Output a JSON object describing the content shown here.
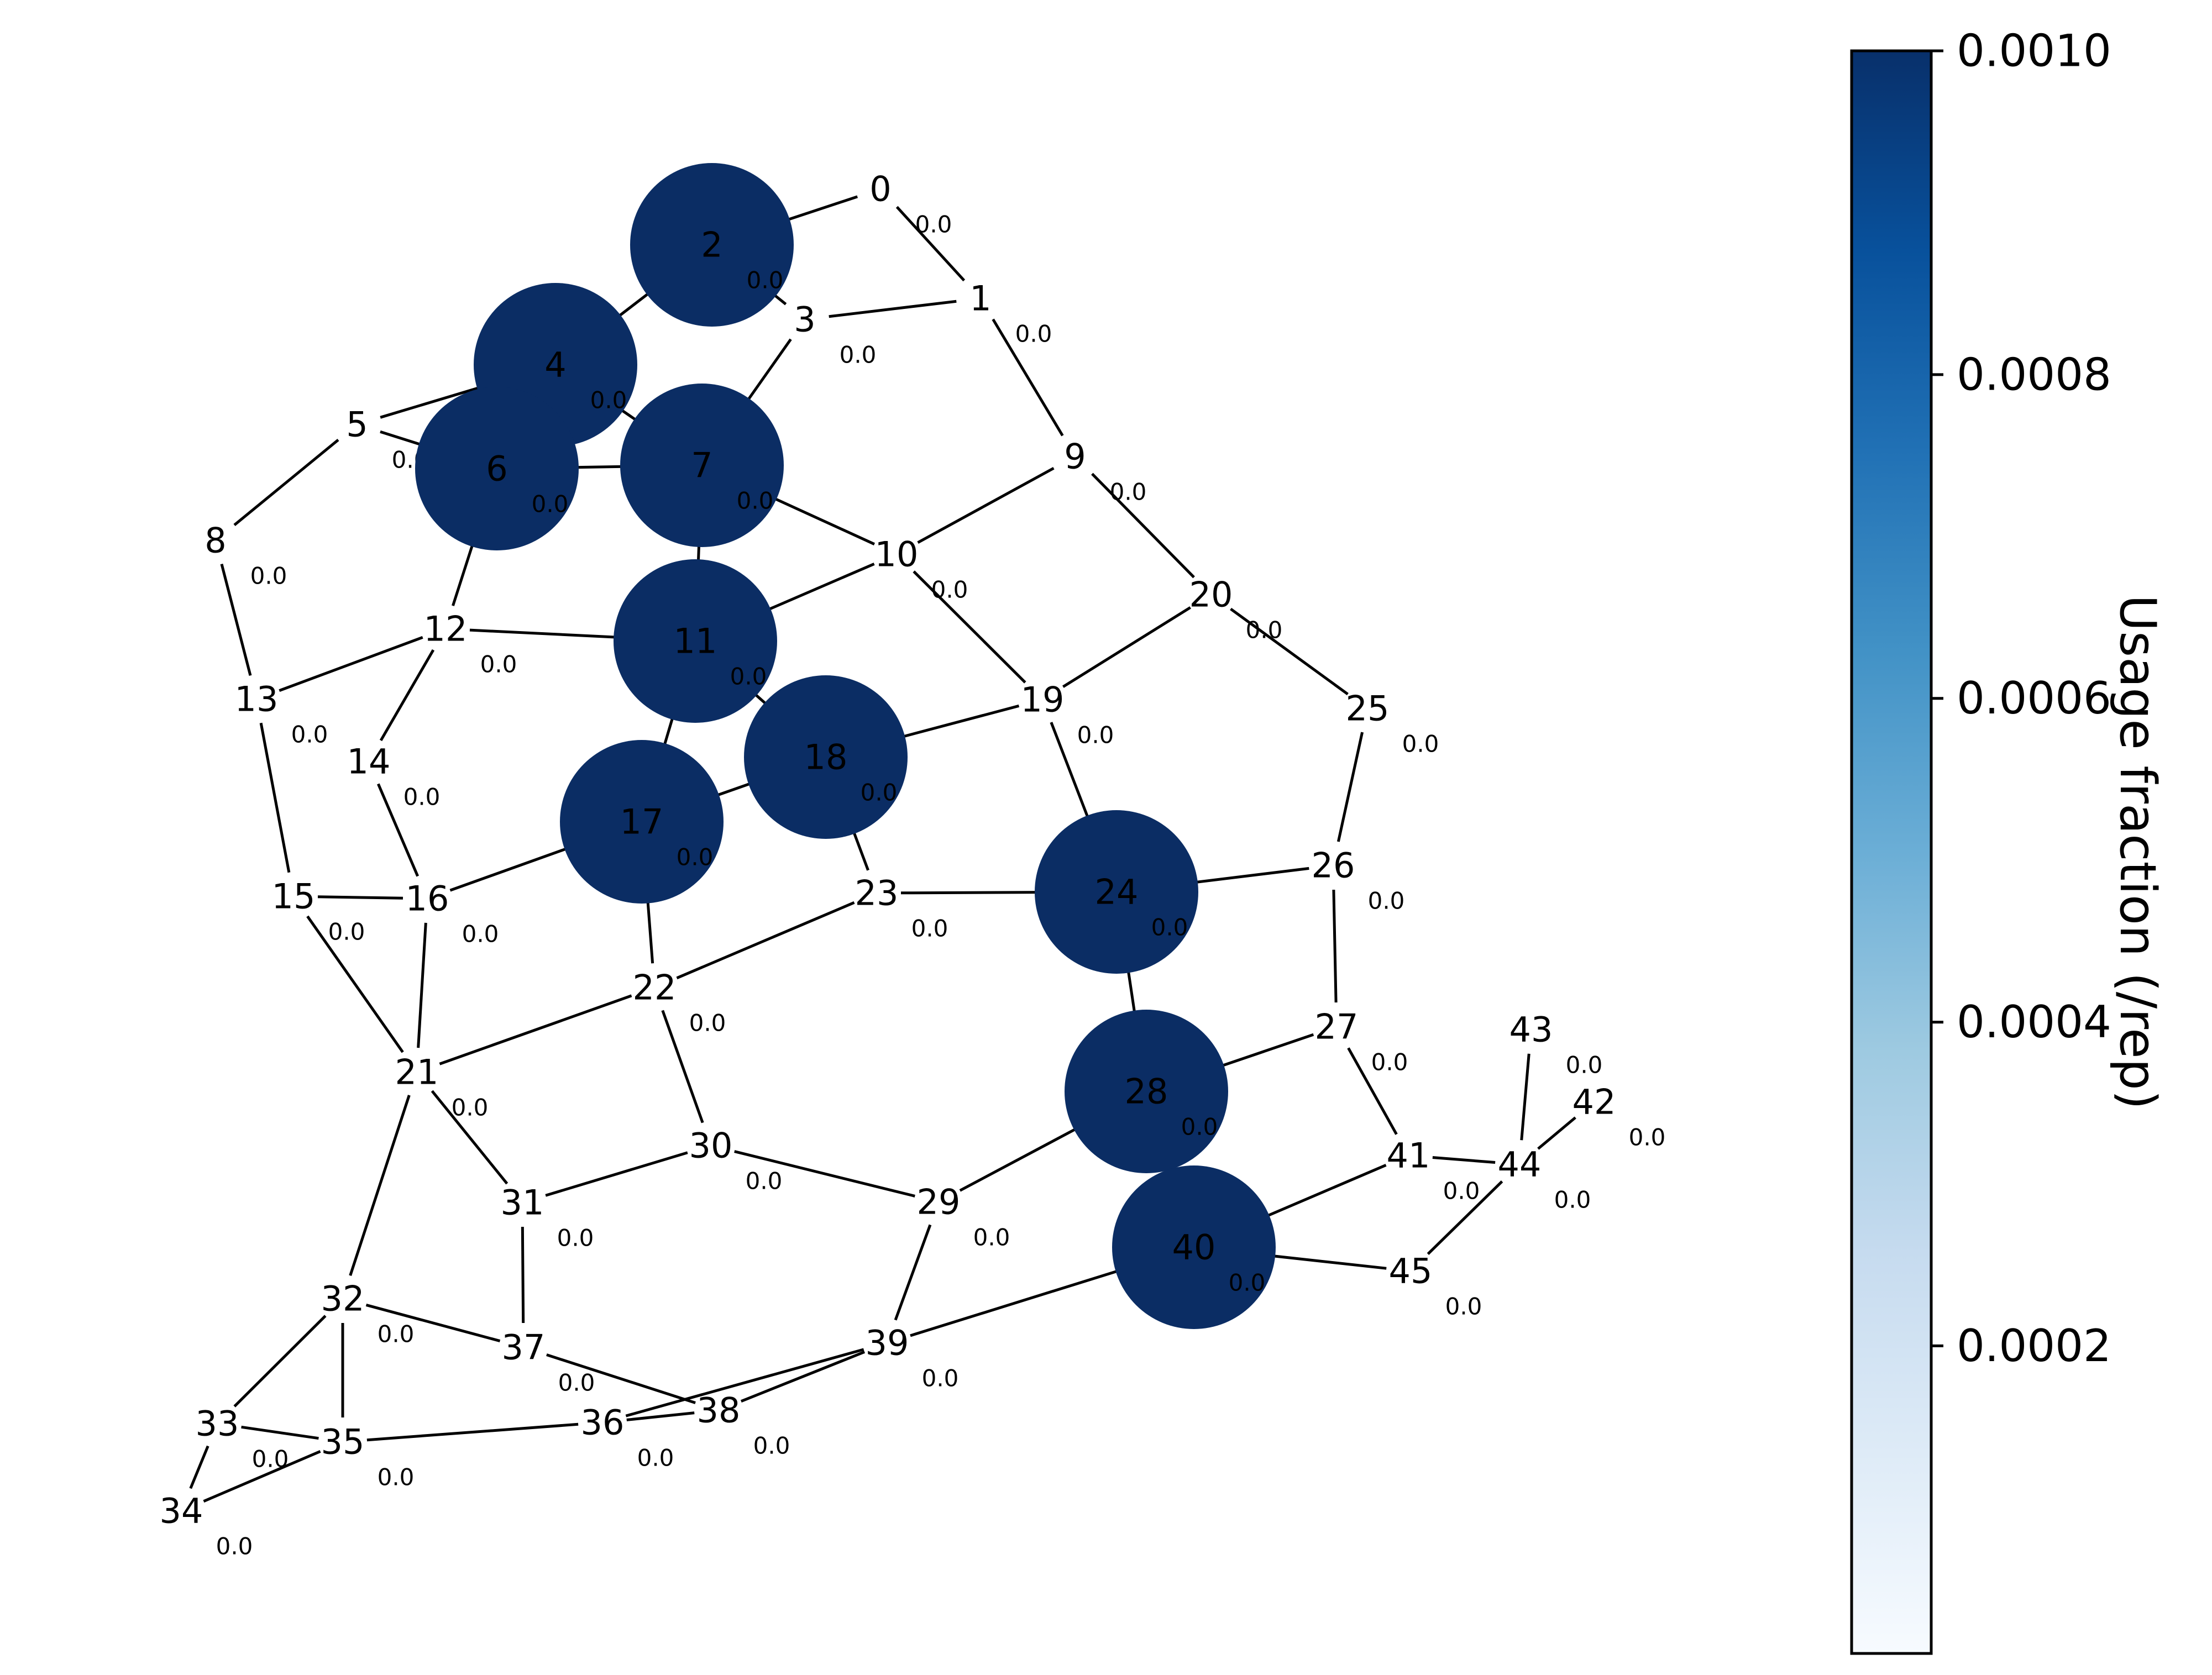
{
  "diagram": {
    "type": "network-graph",
    "colormap": {
      "name": "Blues",
      "light": "#f7fbff",
      "dark": "#08306b",
      "stops": [
        "#f7fbff",
        "#deebf7",
        "#c6dbef",
        "#9ecae1",
        "#6baed6",
        "#4292c6",
        "#2171b5",
        "#08519c",
        "#08306b"
      ]
    },
    "colors": {
      "edge": "#000000",
      "highlighted_node": "#0b2d64",
      "background": "#ffffff"
    },
    "highlighted_nodes": [
      "2",
      "4",
      "6",
      "7",
      "11",
      "17",
      "18",
      "24",
      "28",
      "40"
    ],
    "nodes": [
      {
        "id": "0",
        "usage": "0.0"
      },
      {
        "id": "1",
        "usage": "0.0"
      },
      {
        "id": "2",
        "usage": "0.0"
      },
      {
        "id": "3",
        "usage": "0.0"
      },
      {
        "id": "4",
        "usage": "0.0"
      },
      {
        "id": "5",
        "usage": "0.0"
      },
      {
        "id": "6",
        "usage": "0.0"
      },
      {
        "id": "7",
        "usage": "0.0"
      },
      {
        "id": "8",
        "usage": "0.0"
      },
      {
        "id": "9",
        "usage": "0.0"
      },
      {
        "id": "10",
        "usage": "0.0"
      },
      {
        "id": "11",
        "usage": "0.0"
      },
      {
        "id": "12",
        "usage": "0.0"
      },
      {
        "id": "13",
        "usage": "0.0"
      },
      {
        "id": "14",
        "usage": "0.0"
      },
      {
        "id": "15",
        "usage": "0.0"
      },
      {
        "id": "16",
        "usage": "0.0"
      },
      {
        "id": "17",
        "usage": "0.0"
      },
      {
        "id": "18",
        "usage": "0.0"
      },
      {
        "id": "19",
        "usage": "0.0"
      },
      {
        "id": "20",
        "usage": "0.0"
      },
      {
        "id": "21",
        "usage": "0.0"
      },
      {
        "id": "22",
        "usage": "0.0"
      },
      {
        "id": "23",
        "usage": "0.0"
      },
      {
        "id": "24",
        "usage": "0.0"
      },
      {
        "id": "25",
        "usage": "0.0"
      },
      {
        "id": "26",
        "usage": "0.0"
      },
      {
        "id": "27",
        "usage": "0.0"
      },
      {
        "id": "28",
        "usage": "0.0"
      },
      {
        "id": "29",
        "usage": "0.0"
      },
      {
        "id": "30",
        "usage": "0.0"
      },
      {
        "id": "31",
        "usage": "0.0"
      },
      {
        "id": "32",
        "usage": "0.0"
      },
      {
        "id": "33",
        "usage": "0.0"
      },
      {
        "id": "34",
        "usage": "0.0"
      },
      {
        "id": "35",
        "usage": "0.0"
      },
      {
        "id": "36",
        "usage": "0.0"
      },
      {
        "id": "37",
        "usage": "0.0"
      },
      {
        "id": "38",
        "usage": "0.0"
      },
      {
        "id": "39",
        "usage": "0.0"
      },
      {
        "id": "40",
        "usage": "0.0"
      },
      {
        "id": "41",
        "usage": "0.0"
      },
      {
        "id": "42",
        "usage": "0.0"
      },
      {
        "id": "43",
        "usage": "0.0"
      },
      {
        "id": "44",
        "usage": "0.0"
      },
      {
        "id": "45",
        "usage": "0.0"
      }
    ],
    "edges": [
      [
        "0",
        "2"
      ],
      [
        "0",
        "1"
      ],
      [
        "2",
        "3"
      ],
      [
        "2",
        "4"
      ],
      [
        "1",
        "3"
      ],
      [
        "1",
        "9"
      ],
      [
        "3",
        "7"
      ],
      [
        "4",
        "5"
      ],
      [
        "4",
        "6"
      ],
      [
        "4",
        "7"
      ],
      [
        "5",
        "6"
      ],
      [
        "5",
        "8"
      ],
      [
        "6",
        "7"
      ],
      [
        "6",
        "12"
      ],
      [
        "7",
        "10"
      ],
      [
        "7",
        "11"
      ],
      [
        "8",
        "13"
      ],
      [
        "9",
        "10"
      ],
      [
        "9",
        "20"
      ],
      [
        "10",
        "11"
      ],
      [
        "10",
        "19"
      ],
      [
        "11",
        "12"
      ],
      [
        "11",
        "17"
      ],
      [
        "11",
        "18"
      ],
      [
        "12",
        "13"
      ],
      [
        "12",
        "14"
      ],
      [
        "13",
        "15"
      ],
      [
        "14",
        "16"
      ],
      [
        "15",
        "16"
      ],
      [
        "15",
        "21"
      ],
      [
        "16",
        "17"
      ],
      [
        "16",
        "21"
      ],
      [
        "17",
        "18"
      ],
      [
        "17",
        "22"
      ],
      [
        "18",
        "19"
      ],
      [
        "18",
        "23"
      ],
      [
        "19",
        "20"
      ],
      [
        "19",
        "24"
      ],
      [
        "20",
        "25"
      ],
      [
        "21",
        "22"
      ],
      [
        "21",
        "31"
      ],
      [
        "21",
        "32"
      ],
      [
        "22",
        "23"
      ],
      [
        "22",
        "30"
      ],
      [
        "23",
        "24"
      ],
      [
        "24",
        "26"
      ],
      [
        "24",
        "28"
      ],
      [
        "25",
        "26"
      ],
      [
        "26",
        "27"
      ],
      [
        "27",
        "28"
      ],
      [
        "27",
        "41"
      ],
      [
        "28",
        "29"
      ],
      [
        "28",
        "40"
      ],
      [
        "29",
        "30"
      ],
      [
        "29",
        "39"
      ],
      [
        "30",
        "31"
      ],
      [
        "31",
        "37"
      ],
      [
        "32",
        "33"
      ],
      [
        "32",
        "35"
      ],
      [
        "32",
        "37"
      ],
      [
        "33",
        "34"
      ],
      [
        "33",
        "35"
      ],
      [
        "34",
        "35"
      ],
      [
        "35",
        "36"
      ],
      [
        "36",
        "38"
      ],
      [
        "36",
        "39"
      ],
      [
        "37",
        "38"
      ],
      [
        "38",
        "39"
      ],
      [
        "39",
        "40"
      ],
      [
        "40",
        "41"
      ],
      [
        "40",
        "45"
      ],
      [
        "41",
        "44"
      ],
      [
        "42",
        "44"
      ],
      [
        "43",
        "44"
      ],
      [
        "44",
        "45"
      ]
    ]
  },
  "colorbar": {
    "label": "Usage fraction (/rep)",
    "ticks": [
      "0.0010",
      "0.0008",
      "0.0006",
      "0.0004",
      "0.0002"
    ],
    "tick_values": [
      0.001,
      0.0008,
      0.0006,
      0.0004,
      0.0002
    ],
    "range": [
      1e-05,
      0.001
    ]
  }
}
